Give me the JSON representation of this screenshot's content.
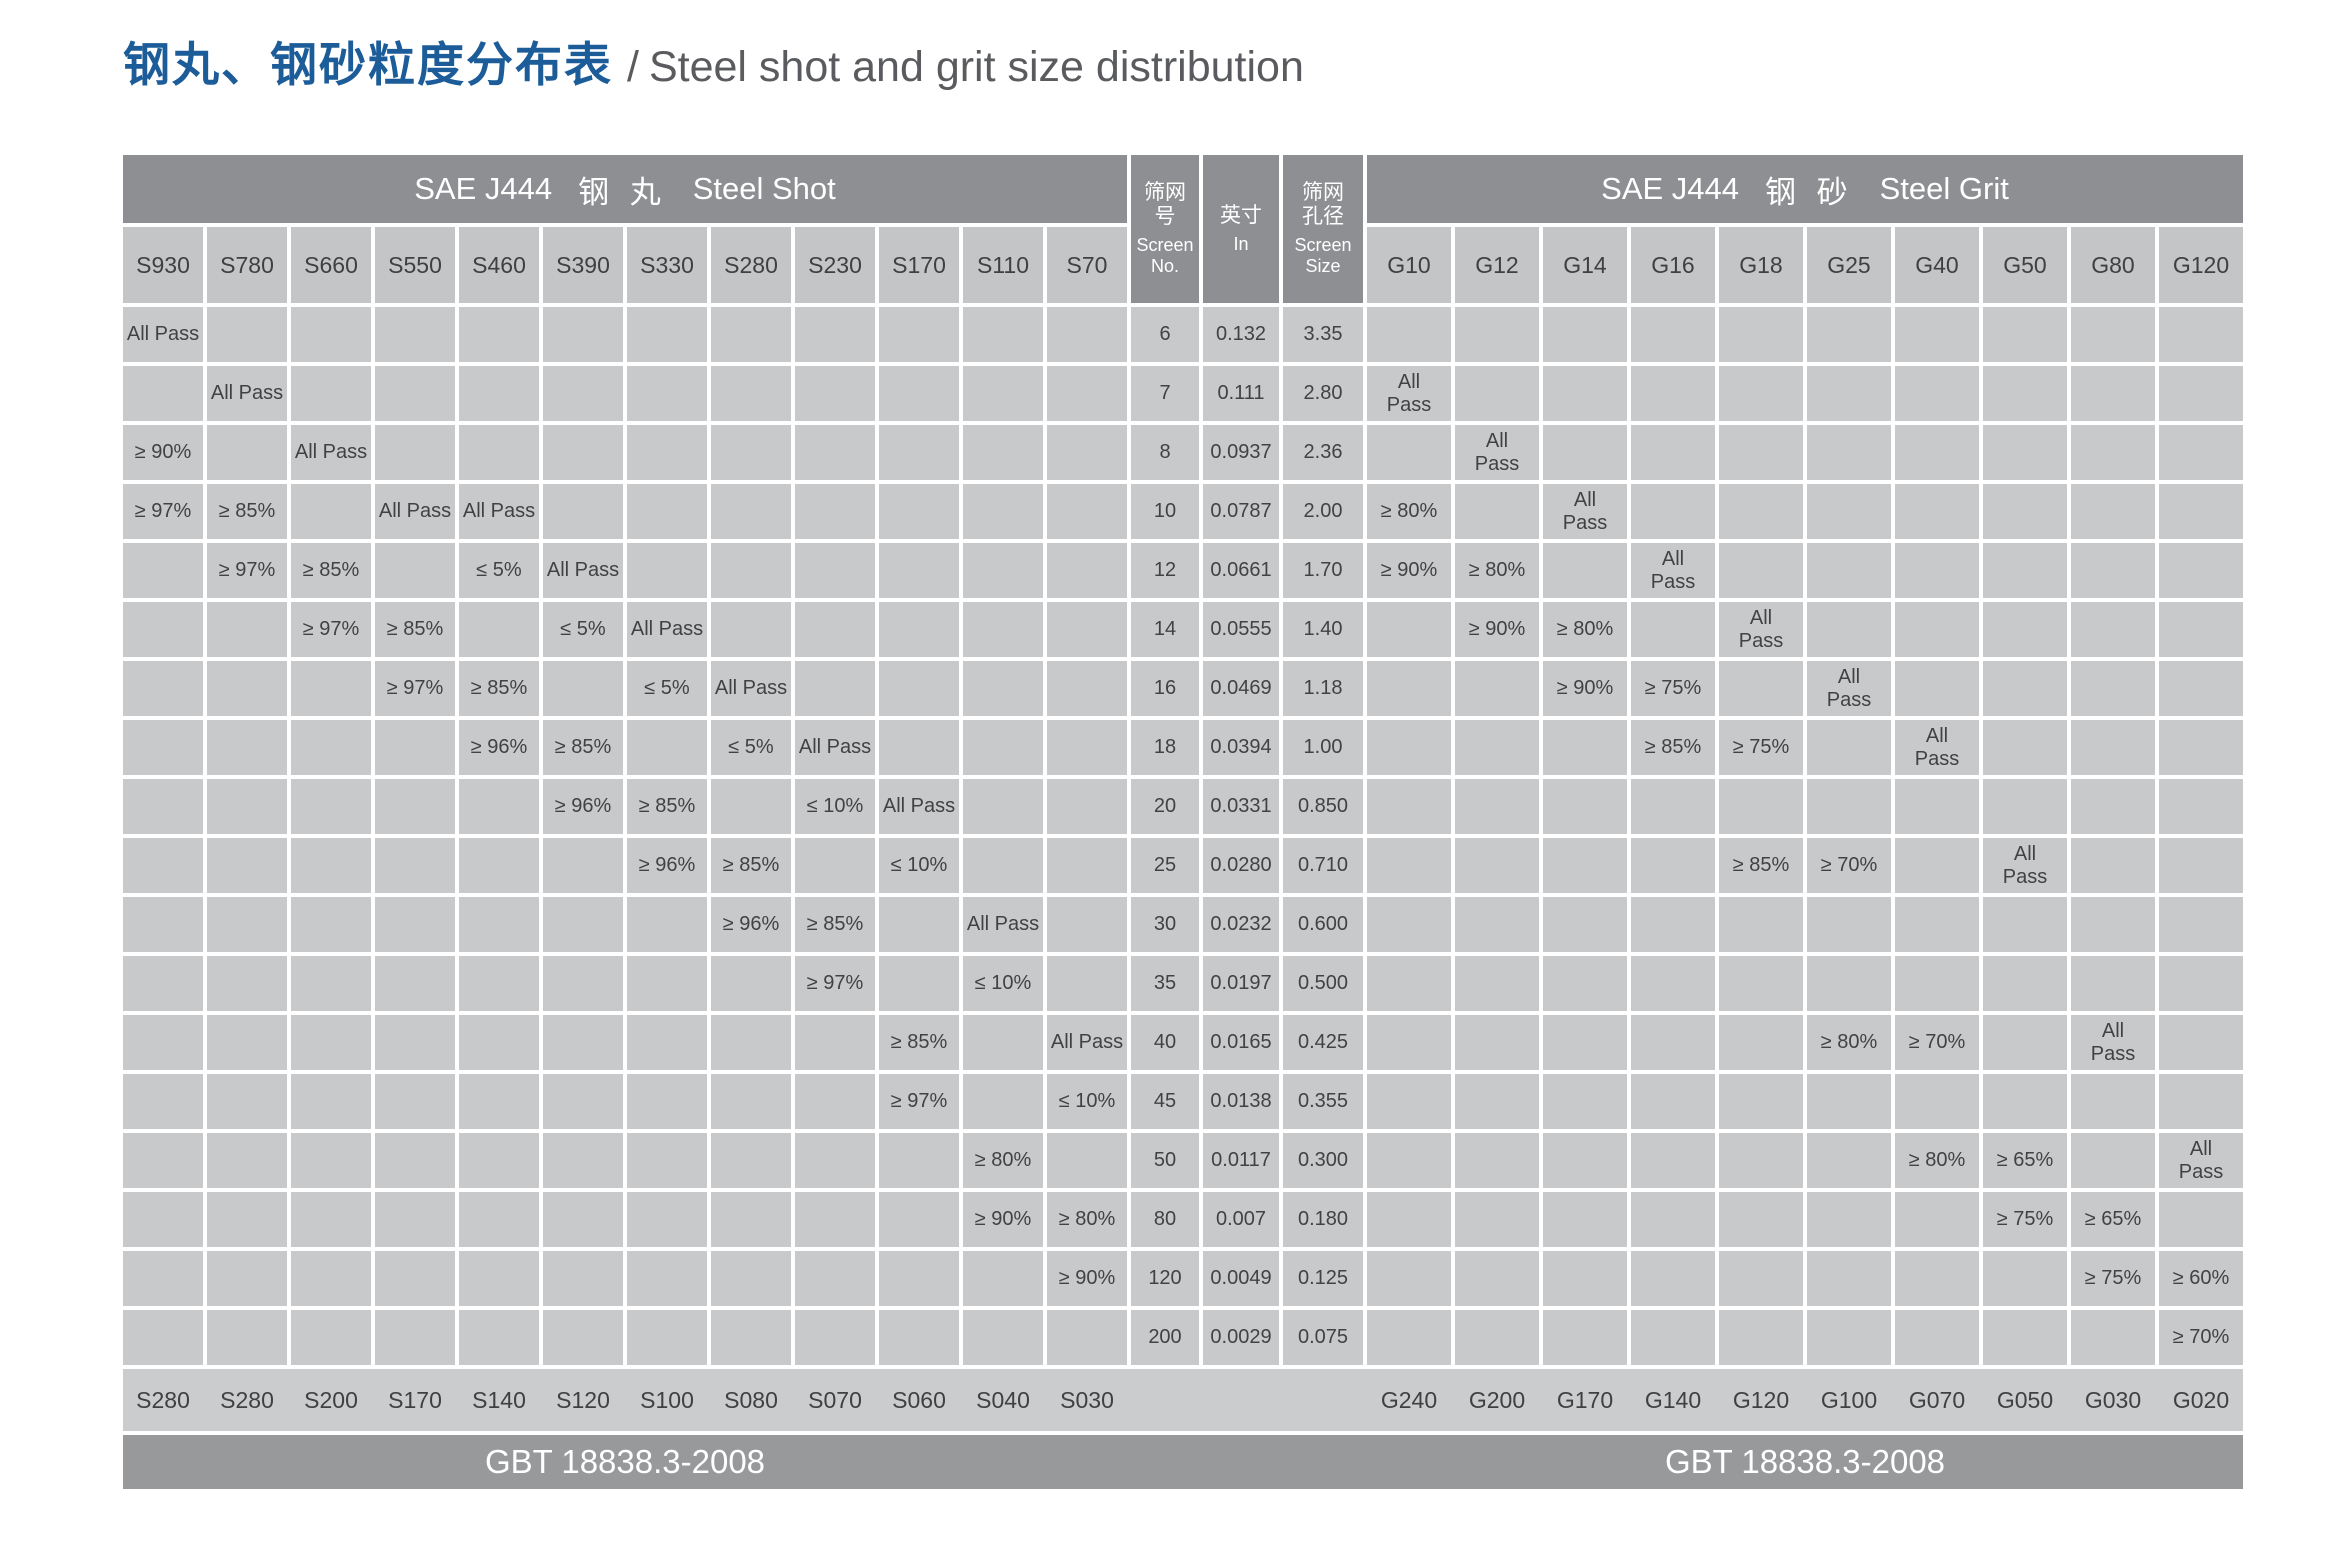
{
  "title": {
    "cn": "钢丸、钢砂粒度分布表",
    "sep": "/",
    "en": "Steel shot and grit size distribution"
  },
  "colors": {
    "title_accent": "#1c5d99",
    "title_gray": "#5a5b5e",
    "header_dark": "#8d8f92",
    "col_label_bg": "#c4c5c7",
    "cell_bg": "#c8c9cb",
    "footer_bg": "#cbcccd",
    "band_bg": "#97999b"
  },
  "table": {
    "shot": {
      "header_sae": "SAE J444",
      "header_cn": "钢 丸",
      "header_en": "Steel Shot",
      "columns": [
        "S930",
        "S780",
        "S660",
        "S550",
        "S460",
        "S390",
        "S330",
        "S280",
        "S230",
        "S170",
        "S110",
        "S70"
      ],
      "footer": [
        "S280",
        "S280",
        "S200",
        "S170",
        "S140",
        "S120",
        "S100",
        "S080",
        "S070",
        "S060",
        "S040",
        "S030"
      ],
      "standard": "GBT 18838.3-2008"
    },
    "middle": {
      "screen_no": {
        "cn": "筛网\n号",
        "en": "Screen\nNo."
      },
      "inch": {
        "cn": "英寸",
        "en": "In"
      },
      "screen_size": {
        "cn": "筛网\n孔径",
        "en": "Screen\nSize"
      }
    },
    "grit": {
      "header_sae": "SAE J444",
      "header_cn": "钢 砂",
      "header_en": "Steel Grit",
      "columns": [
        "G10",
        "G12",
        "G14",
        "G16",
        "G18",
        "G25",
        "G40",
        "G50",
        "G80",
        "G120"
      ],
      "footer": [
        "G240",
        "G200",
        "G170",
        "G140",
        "G120",
        "G100",
        "G070",
        "G050",
        "G030",
        "G020"
      ],
      "standard": "GBT 18838.3-2008"
    },
    "rows": [
      {
        "screen_no": "6",
        "in": "0.132",
        "size": "3.35",
        "shot": {
          "S930": "All Pass"
        },
        "grit": {}
      },
      {
        "screen_no": "7",
        "in": "0.111",
        "size": "2.80",
        "shot": {
          "S780": "All Pass"
        },
        "grit": {
          "G10": "All Pass"
        }
      },
      {
        "screen_no": "8",
        "in": "0.0937",
        "size": "2.36",
        "shot": {
          "S930": "≥ 90%",
          "S660": "All Pass"
        },
        "grit": {
          "G12": "All Pass"
        }
      },
      {
        "screen_no": "10",
        "in": "0.0787",
        "size": "2.00",
        "shot": {
          "S930": "≥ 97%",
          "S780": "≥ 85%",
          "S550": "All Pass",
          "S460": "All Pass"
        },
        "grit": {
          "G10": "≥ 80%",
          "G14": "All Pass"
        }
      },
      {
        "screen_no": "12",
        "in": "0.0661",
        "size": "1.70",
        "shot": {
          "S780": "≥ 97%",
          "S660": "≥ 85%",
          "S460": "≤ 5%",
          "S390": "All Pass"
        },
        "grit": {
          "G10": "≥ 90%",
          "G12": "≥ 80%",
          "G16": "All Pass"
        }
      },
      {
        "screen_no": "14",
        "in": "0.0555",
        "size": "1.40",
        "shot": {
          "S660": "≥ 97%",
          "S550": "≥ 85%",
          "S390": "≤ 5%",
          "S330": "All Pass"
        },
        "grit": {
          "G12": "≥ 90%",
          "G14": "≥ 80%",
          "G18": "All Pass"
        }
      },
      {
        "screen_no": "16",
        "in": "0.0469",
        "size": "1.18",
        "shot": {
          "S550": "≥ 97%",
          "S460": "≥ 85%",
          "S330": "≤ 5%",
          "S280": "All Pass"
        },
        "grit": {
          "G14": "≥ 90%",
          "G16": "≥ 75%",
          "G25": "All Pass"
        }
      },
      {
        "screen_no": "18",
        "in": "0.0394",
        "size": "1.00",
        "shot": {
          "S460": "≥ 96%",
          "S390": "≥ 85%",
          "S280": "≤ 5%",
          "S230": "All Pass"
        },
        "grit": {
          "G16": "≥ 85%",
          "G18": "≥ 75%",
          "G40": "All Pass"
        }
      },
      {
        "screen_no": "20",
        "in": "0.0331",
        "size": "0.850",
        "shot": {
          "S390": "≥ 96%",
          "S330": "≥ 85%",
          "S230": "≤ 10%",
          "S170": "All Pass"
        },
        "grit": {}
      },
      {
        "screen_no": "25",
        "in": "0.0280",
        "size": "0.710",
        "shot": {
          "S330": "≥ 96%",
          "S280": "≥ 85%",
          "S170": "≤ 10%"
        },
        "grit": {
          "G18": "≥ 85%",
          "G25": "≥ 70%",
          "G50": "All Pass"
        }
      },
      {
        "screen_no": "30",
        "in": "0.0232",
        "size": "0.600",
        "shot": {
          "S280": "≥ 96%",
          "S230": "≥ 85%",
          "S110": "All Pass"
        },
        "grit": {}
      },
      {
        "screen_no": "35",
        "in": "0.0197",
        "size": "0.500",
        "shot": {
          "S230": "≥ 97%",
          "S110": "≤ 10%"
        },
        "grit": {}
      },
      {
        "screen_no": "40",
        "in": "0.0165",
        "size": "0.425",
        "shot": {
          "S170": "≥ 85%",
          "S70": "All Pass"
        },
        "grit": {
          "G25": "≥ 80%",
          "G40": "≥ 70%",
          "G80": "All Pass"
        }
      },
      {
        "screen_no": "45",
        "in": "0.0138",
        "size": "0.355",
        "shot": {
          "S170": "≥ 97%",
          "S70": "≤ 10%"
        },
        "grit": {}
      },
      {
        "screen_no": "50",
        "in": "0.0117",
        "size": "0.300",
        "shot": {
          "S110": "≥ 80%"
        },
        "grit": {
          "G40": "≥ 80%",
          "G50": "≥ 65%",
          "G120": "All Pass"
        }
      },
      {
        "screen_no": "80",
        "in": "0.007",
        "size": "0.180",
        "shot": {
          "S110": "≥ 90%",
          "S70": "≥ 80%"
        },
        "grit": {
          "G50": "≥ 75%",
          "G80": "≥ 65%"
        }
      },
      {
        "screen_no": "120",
        "in": "0.0049",
        "size": "0.125",
        "shot": {
          "S70": "≥ 90%"
        },
        "grit": {
          "G80": "≥ 75%",
          "G120": "≥ 60%"
        }
      },
      {
        "screen_no": "200",
        "in": "0.0029",
        "size": "0.075",
        "shot": {},
        "grit": {
          "G120": "≥ 70%"
        }
      }
    ]
  }
}
